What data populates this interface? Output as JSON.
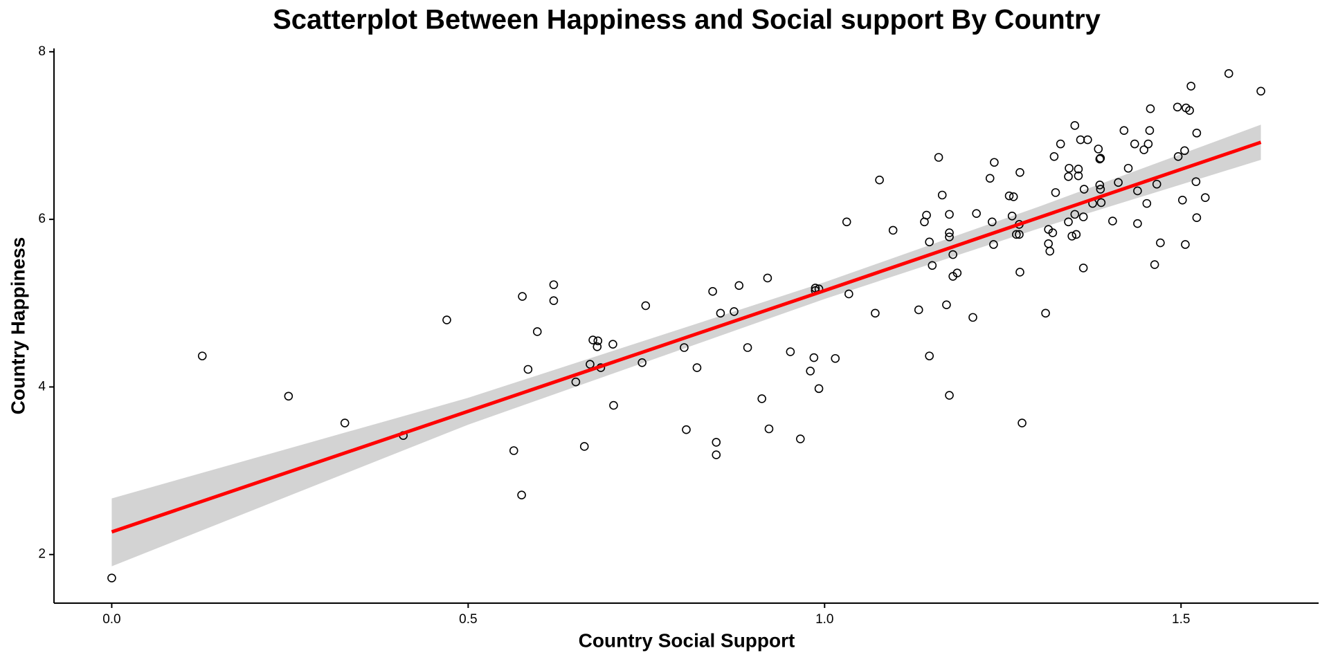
{
  "chart_data": {
    "type": "scatter",
    "title": "Scatterplot Between Happiness and Social support By Country",
    "xlabel": "Country Social Support",
    "ylabel": "Country Happiness",
    "point_color": "#000000",
    "x": [
      0.0,
      0.127,
      0.248,
      0.327,
      0.409,
      0.47,
      0.564,
      0.576,
      0.575,
      0.584,
      0.597,
      0.62,
      0.62,
      0.651,
      0.663,
      0.671,
      0.675,
      0.682,
      0.681,
      0.686,
      0.703,
      0.704,
      0.744,
      0.749,
      0.803,
      0.806,
      0.821,
      0.843,
      0.848,
      0.848,
      0.854,
      0.873,
      0.88,
      0.892,
      0.912,
      0.92,
      0.922,
      0.952,
      0.966,
      0.98,
      0.985,
      0.987,
      0.987,
      0.992,
      0.992,
      1.015,
      1.031,
      1.034,
      1.071,
      1.077,
      1.096,
      1.132,
      1.14,
      1.143,
      1.147,
      1.147,
      1.151,
      1.16,
      1.165,
      1.171,
      1.175,
      1.175,
      1.175,
      1.175,
      1.18,
      1.18,
      1.186,
      1.208,
      1.213,
      1.232,
      1.235,
      1.237,
      1.238,
      1.259,
      1.263,
      1.265,
      1.269,
      1.273,
      1.273,
      1.274,
      1.274,
      1.277,
      1.31,
      1.314,
      1.314,
      1.316,
      1.32,
      1.322,
      1.324,
      1.331,
      1.342,
      1.342,
      1.343,
      1.347,
      1.351,
      1.351,
      1.353,
      1.356,
      1.356,
      1.359,
      1.363,
      1.363,
      1.364,
      1.369,
      1.376,
      1.384,
      1.386,
      1.387,
      1.386,
      1.387,
      1.388,
      1.404,
      1.412,
      1.42,
      1.426,
      1.435,
      1.439,
      1.439,
      1.448,
      1.452,
      1.454,
      1.456,
      1.457,
      1.463,
      1.466,
      1.471,
      1.495,
      1.496,
      1.502,
      1.505,
      1.506,
      1.507,
      1.512,
      1.514,
      1.521,
      1.522,
      1.522,
      1.534,
      1.567,
      1.612
    ],
    "y": [
      1.72,
      4.37,
      3.89,
      3.57,
      3.42,
      4.8,
      3.24,
      5.08,
      2.71,
      4.21,
      4.66,
      5.22,
      5.03,
      4.06,
      3.29,
      4.27,
      4.56,
      4.55,
      4.48,
      4.23,
      4.51,
      3.78,
      4.29,
      4.97,
      4.47,
      3.49,
      4.23,
      5.14,
      3.34,
      3.19,
      4.88,
      4.9,
      5.21,
      4.47,
      3.86,
      5.3,
      3.5,
      4.42,
      3.38,
      4.19,
      4.35,
      5.18,
      5.15,
      5.17,
      3.98,
      4.34,
      5.97,
      5.11,
      4.88,
      6.47,
      5.87,
      4.92,
      5.97,
      6.05,
      4.37,
      5.73,
      5.45,
      6.74,
      6.29,
      4.98,
      5.79,
      5.84,
      6.06,
      3.9,
      5.58,
      5.32,
      5.36,
      4.83,
      6.07,
      6.49,
      5.97,
      5.7,
      6.68,
      6.28,
      6.04,
      6.27,
      5.82,
      5.82,
      5.94,
      5.37,
      6.56,
      3.57,
      4.88,
      5.88,
      5.71,
      5.62,
      5.84,
      6.75,
      6.32,
      6.9,
      5.97,
      6.51,
      6.61,
      5.8,
      6.06,
      7.12,
      5.82,
      6.6,
      6.52,
      6.95,
      5.42,
      6.03,
      6.36,
      6.95,
      6.19,
      6.84,
      6.72,
      6.73,
      6.41,
      6.36,
      6.2,
      5.98,
      6.44,
      7.06,
      6.61,
      6.9,
      6.34,
      5.95,
      6.83,
      6.19,
      6.9,
      7.06,
      7.32,
      5.46,
      6.42,
      5.72,
      7.34,
      6.75,
      6.23,
      6.82,
      5.7,
      7.33,
      7.3,
      7.59,
      6.45,
      7.03,
      6.02,
      6.26,
      7.74,
      7.53
    ],
    "fit": {
      "x": [
        0,
        0.5,
        1.0,
        1.3,
        1.612
      ],
      "y": [
        2.27,
        3.71,
        5.15,
        6.02,
        6.92
      ],
      "lower": [
        1.86,
        3.55,
        5.05,
        5.89,
        6.71
      ],
      "upper": [
        2.67,
        3.87,
        5.25,
        6.15,
        7.13
      ],
      "color": "#ff0000",
      "band_color": "#d3d3d3"
    },
    "xlim": [
      -0.081,
      1.693
    ],
    "ylim": [
      1.42,
      8.04
    ],
    "xticks": [
      {
        "value": 0,
        "label": "0.0"
      },
      0.5,
      {
        "value": 1,
        "label": "1.0"
      },
      1.5
    ],
    "yticks": [
      2,
      4,
      6,
      8
    ]
  }
}
